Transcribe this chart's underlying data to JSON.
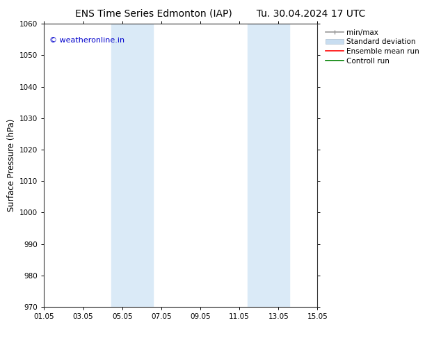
{
  "title_left": "ENS Time Series Edmonton (IAP)",
  "title_right": "Tu. 30.04.2024 17 UTC",
  "ylabel": "Surface Pressure (hPa)",
  "ylim": [
    970,
    1060
  ],
  "yticks": [
    970,
    980,
    990,
    1000,
    1010,
    1020,
    1030,
    1040,
    1050,
    1060
  ],
  "xlim_start": 0,
  "xlim_end": 14,
  "xtick_labels": [
    "01.05",
    "03.05",
    "05.05",
    "07.05",
    "09.05",
    "11.05",
    "13.05",
    "15.05"
  ],
  "xtick_positions": [
    0,
    2,
    4,
    6,
    8,
    10,
    12,
    14
  ],
  "shaded_bands": [
    {
      "x_start": 3.43,
      "x_end": 5.57
    },
    {
      "x_start": 10.43,
      "x_end": 12.57
    }
  ],
  "shaded_color": "#daeaf7",
  "background_color": "#ffffff",
  "plot_bg_color": "#ffffff",
  "watermark_text": "© weatheronline.in",
  "watermark_color": "#0000cc",
  "legend_items": [
    {
      "label": "min/max",
      "color": "#aaaaaa",
      "lw": 1.2
    },
    {
      "label": "Standard deviation",
      "color": "#c8ddf0",
      "lw": 7
    },
    {
      "label": "Ensemble mean run",
      "color": "#ff0000",
      "lw": 1.2
    },
    {
      "label": "Controll run",
      "color": "#008000",
      "lw": 1.2
    }
  ],
  "title_fontsize": 10,
  "tick_fontsize": 7.5,
  "ylabel_fontsize": 8.5,
  "legend_fontsize": 7.5,
  "watermark_fontsize": 8,
  "spine_color": "#555555",
  "border_color": "#333333"
}
